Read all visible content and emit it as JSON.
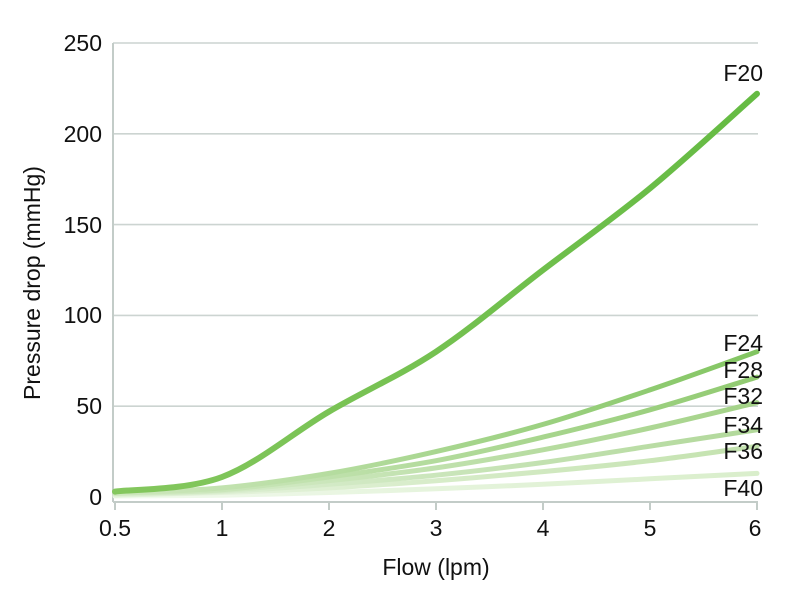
{
  "figure": {
    "background": "#ffffff",
    "text_color": "#111111",
    "grid_color": "#ccd4d1",
    "axis_color": "#c3ccc8"
  },
  "chart_data": {
    "type": "line",
    "title": "",
    "xlabel": "Flow (lpm)",
    "ylabel": "Pressure drop (mmHg)",
    "x": [
      0.5,
      1,
      2,
      3,
      4,
      5,
      6
    ],
    "x_tick_labels": [
      "0.5",
      "1",
      "2",
      "3",
      "4",
      "5",
      "6"
    ],
    "y_ticks": [
      0,
      50,
      100,
      150,
      200,
      250
    ],
    "y_tick_labels": [
      "0",
      "50",
      "100",
      "150",
      "200",
      "250"
    ],
    "ylim": [
      0,
      250
    ],
    "grid": "horizontal gridlines every 50 mmHg",
    "x_scale_note": "x tick positions equally spaced (0.5 then integers 1-6)",
    "legend_position": "series labels at right end of each line",
    "units": "mmHg vs lpm",
    "series": [
      {
        "name": "F20",
        "values": [
          3,
          11,
          47,
          80,
          125,
          170,
          222
        ],
        "color": "#65bb43",
        "color_fade": "#84c75e"
      },
      {
        "name": "F24",
        "values": [
          2,
          5,
          13,
          25,
          40,
          59,
          80
        ],
        "color": "#82c561",
        "color_fade": "#cfe8bf"
      },
      {
        "name": "F28",
        "values": [
          2,
          4,
          11,
          20,
          33,
          48,
          66
        ],
        "color": "#90ca70",
        "color_fade": "#d6ecc9"
      },
      {
        "name": "F32",
        "values": [
          1.5,
          3.5,
          9,
          16,
          26,
          38,
          52
        ],
        "color": "#a3d287",
        "color_fade": "#def0d4"
      },
      {
        "name": "F34",
        "values": [
          1,
          3,
          7,
          12,
          19,
          28,
          37
        ],
        "color": "#b1d89a",
        "color_fade": "#e4f3dc"
      },
      {
        "name": "F36",
        "values": [
          1,
          2.5,
          5,
          9,
          14,
          20,
          28
        ],
        "color": "#c3e2ae",
        "color_fade": "#ebf6e4"
      },
      {
        "name": "F40",
        "values": [
          0.5,
          1,
          2.5,
          4.5,
          7,
          10,
          13
        ],
        "color": "#d9eecb",
        "color_fade": "#f2faee"
      }
    ]
  }
}
